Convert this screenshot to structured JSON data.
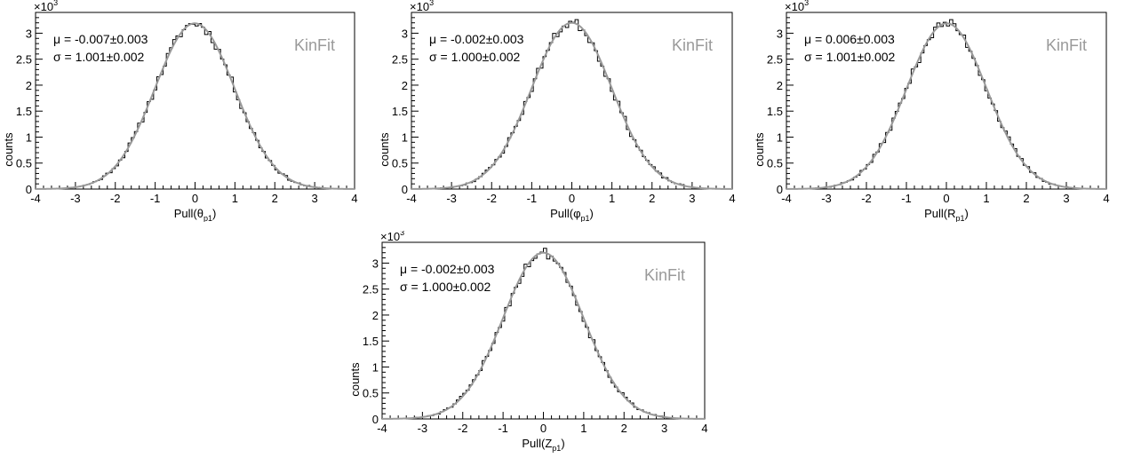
{
  "chart_data": [
    {
      "type": "histogram",
      "panel": "top-left",
      "xlabel": "Pull(θ",
      "xlabel_sub": "p1",
      "ylabel": "counts",
      "y_multiplier": "×10",
      "y_multiplier_exp": "3",
      "xlim": [
        -4,
        4
      ],
      "ylim": [
        0,
        3.4
      ],
      "xticks": [
        -4,
        -3,
        -2,
        -1,
        0,
        1,
        2,
        3,
        4
      ],
      "yticks": [
        0,
        0.5,
        1,
        1.5,
        2,
        2.5,
        3
      ],
      "ytick_labels": [
        "0",
        "0.5",
        "1",
        "1.5",
        "2",
        "2.5",
        "3"
      ],
      "stats": [
        "μ = -0.007±0.003",
        "σ = 1.001±0.002"
      ],
      "watermark": "KinFit",
      "fit": {
        "mean": -0.007,
        "sigma": 1.001,
        "peak": 3.19
      },
      "noise_seed": 11,
      "hist_color": "#000000",
      "fit_color": "#9a9a9a"
    },
    {
      "type": "histogram",
      "panel": "top-middle",
      "xlabel": "Pull(φ",
      "xlabel_sub": "p1",
      "ylabel": "counts",
      "y_multiplier": "×10",
      "y_multiplier_exp": "3",
      "xlim": [
        -4,
        4
      ],
      "ylim": [
        0,
        3.4
      ],
      "xticks": [
        -4,
        -3,
        -2,
        -1,
        0,
        1,
        2,
        3,
        4
      ],
      "yticks": [
        0,
        0.5,
        1,
        1.5,
        2,
        2.5,
        3
      ],
      "ytick_labels": [
        "0",
        "0.5",
        "1",
        "1.5",
        "2",
        "2.5",
        "3"
      ],
      "stats": [
        "μ = -0.002±0.003",
        "σ = 1.000±0.002"
      ],
      "watermark": "KinFit",
      "fit": {
        "mean": -0.002,
        "sigma": 1.0,
        "peak": 3.2
      },
      "noise_seed": 23,
      "hist_color": "#000000",
      "fit_color": "#9a9a9a"
    },
    {
      "type": "histogram",
      "panel": "top-right",
      "xlabel": "Pull(R",
      "xlabel_sub": "p1",
      "ylabel": "counts",
      "y_multiplier": "×10",
      "y_multiplier_exp": "3",
      "xlim": [
        -4,
        4
      ],
      "ylim": [
        0,
        3.4
      ],
      "xticks": [
        -4,
        -3,
        -2,
        -1,
        0,
        1,
        2,
        3,
        4
      ],
      "yticks": [
        0,
        0.5,
        1,
        1.5,
        2,
        2.5,
        3
      ],
      "ytick_labels": [
        "0",
        "0.5",
        "1",
        "1.5",
        "2",
        "2.5",
        "3"
      ],
      "stats": [
        "μ = 0.006±0.003",
        "σ = 1.001±0.002"
      ],
      "watermark": "KinFit",
      "fit": {
        "mean": 0.006,
        "sigma": 1.001,
        "peak": 3.19
      },
      "noise_seed": 37,
      "hist_color": "#000000",
      "fit_color": "#9a9a9a"
    },
    {
      "type": "histogram",
      "panel": "bottom-center",
      "xlabel": "Pull(Z",
      "xlabel_sub": "p1",
      "ylabel": "counts",
      "y_multiplier": "×10",
      "y_multiplier_exp": "3",
      "xlim": [
        -4,
        4
      ],
      "ylim": [
        0,
        3.4
      ],
      "xticks": [
        -4,
        -3,
        -2,
        -1,
        0,
        1,
        2,
        3,
        4
      ],
      "yticks": [
        0,
        0.5,
        1,
        1.5,
        2,
        2.5,
        3
      ],
      "ytick_labels": [
        "0",
        "0.5",
        "1",
        "1.5",
        "2",
        "2.5",
        "3"
      ],
      "stats": [
        "μ = -0.002±0.003",
        "σ = 1.000±0.002"
      ],
      "watermark": "KinFit",
      "fit": {
        "mean": -0.002,
        "sigma": 1.0,
        "peak": 3.2
      },
      "noise_seed": 51,
      "hist_color": "#000000",
      "fit_color": "#9a9a9a"
    }
  ]
}
